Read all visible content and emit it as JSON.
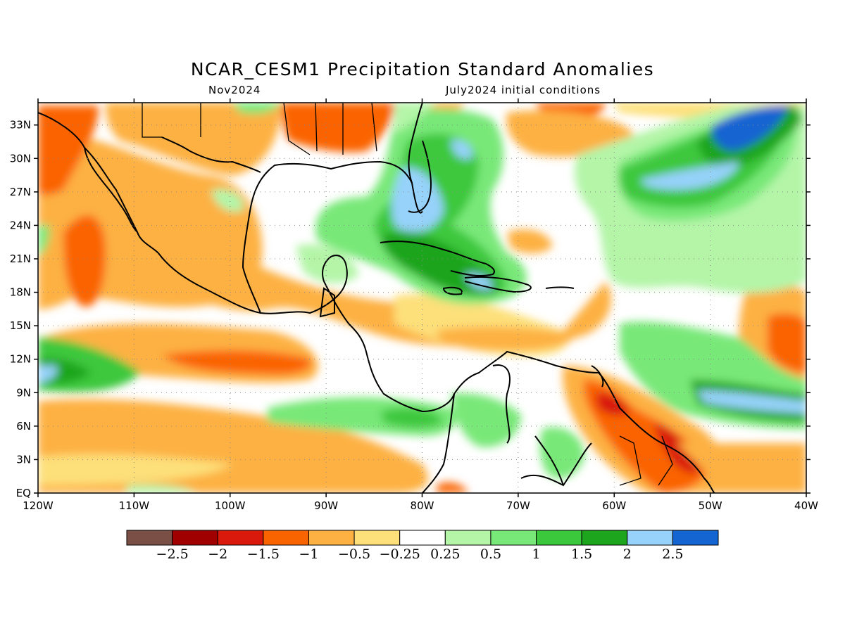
{
  "title": "NCAR_CESM1 Precipitation Standard Anomalies",
  "valid_month": "Nov2024",
  "init_label": "July2024 initial conditions",
  "map": {
    "lon_range": [
      -120,
      -40
    ],
    "lat_range": [
      0,
      35
    ],
    "lat_ticks": [
      {
        "lat": 33,
        "label": "33N"
      },
      {
        "lat": 30,
        "label": "30N"
      },
      {
        "lat": 27,
        "label": "27N"
      },
      {
        "lat": 24,
        "label": "24N"
      },
      {
        "lat": 21,
        "label": "21N"
      },
      {
        "lat": 18,
        "label": "18N"
      },
      {
        "lat": 15,
        "label": "15N"
      },
      {
        "lat": 12,
        "label": "12N"
      },
      {
        "lat": 9,
        "label": "9N"
      },
      {
        "lat": 6,
        "label": "6N"
      },
      {
        "lat": 3,
        "label": "3N"
      },
      {
        "lat": 0,
        "label": "EQ"
      }
    ],
    "lon_ticks": [
      {
        "lon": -120,
        "label": "120W"
      },
      {
        "lon": -110,
        "label": "110W"
      },
      {
        "lon": -100,
        "label": "100W"
      },
      {
        "lon": -90,
        "label": "90W"
      },
      {
        "lon": -80,
        "label": "80W"
      },
      {
        "lon": -70,
        "label": "70W"
      },
      {
        "lon": -60,
        "label": "60W"
      },
      {
        "lon": -50,
        "label": "50W"
      },
      {
        "lon": -40,
        "label": "40W"
      }
    ],
    "grid": "dotted"
  },
  "colorbar": {
    "colors": [
      "#7a4f45",
      "#a00000",
      "#d8190b",
      "#fa6400",
      "#fdb142",
      "#fde07a",
      "#ffffff",
      "#b4f5a8",
      "#78e878",
      "#3cc83c",
      "#1ea51e",
      "#96d2fa",
      "#1464d2"
    ],
    "labels": [
      "-2.5",
      "-2",
      "-1.5",
      "-1",
      "-0.5",
      "-0.25",
      "0.25",
      "0.5",
      "1",
      "1.5",
      "2",
      "2.5"
    ]
  },
  "anomaly_regions": [
    {
      "level": "-1.5",
      "lon": -117.5,
      "lat": 29.5
    },
    {
      "level": "-1.5",
      "lon": -98,
      "lat": 32
    },
    {
      "level": "-1.5",
      "lon": -115.5,
      "lat": 21
    },
    {
      "level": "-1.5",
      "lon": -91,
      "lat": 11
    },
    {
      "level": "-2",
      "lon": -59,
      "lat": 8
    },
    {
      "level": "-1.5",
      "lon": -55,
      "lat": 4
    },
    {
      "level": "-1.5",
      "lon": -43,
      "lat": 13
    },
    {
      "level": "1.5",
      "lon": -77,
      "lat": 26
    },
    {
      "level": "2",
      "lon": -75,
      "lat": 20
    },
    {
      "level": "2.5",
      "lon": -78,
      "lat": 24.5
    },
    {
      "level": "1.5",
      "lon": -48,
      "lat": 27
    },
    {
      "level": "2.5",
      "lon": -47,
      "lat": 31.5
    },
    {
      "level": "1.5",
      "lon": -117,
      "lat": 11
    },
    {
      "level": "1.5",
      "lon": -48,
      "lat": 8.5
    },
    {
      "level": "1",
      "lon": -85,
      "lat": 7
    },
    {
      "level": "1",
      "lon": -66,
      "lat": 4
    }
  ]
}
